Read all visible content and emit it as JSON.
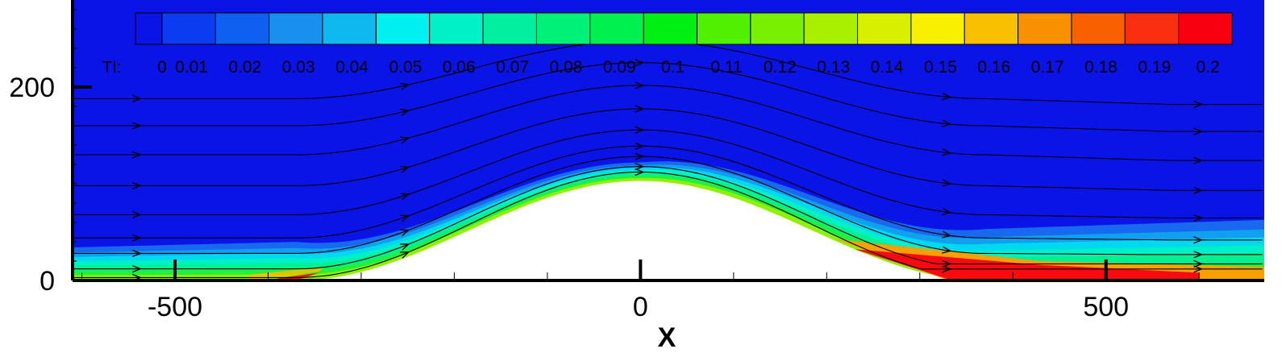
{
  "chart_data": {
    "type": "heatmap",
    "variable": "TI",
    "legend_title": "TI:",
    "colorbar_levels": [
      "0",
      "0.01",
      "0.02",
      "0.03",
      "0.04",
      "0.05",
      "0.06",
      "0.07",
      "0.08",
      "0.09",
      "0.1",
      "0.11",
      "0.12",
      "0.13",
      "0.14",
      "0.15",
      "0.16",
      "0.17",
      "0.18",
      "0.19",
      "0.2"
    ],
    "colorbar_colors": [
      "#0a14e6",
      "#0c3cf0",
      "#1060f0",
      "#1890f0",
      "#10b8f0",
      "#00f0f0",
      "#00f0c8",
      "#00f0a0",
      "#00f078",
      "#00f050",
      "#00f014",
      "#50f000",
      "#78f000",
      "#a8f000",
      "#d8f000",
      "#f8f000",
      "#f8c000",
      "#f89000",
      "#f86000",
      "#f83010",
      "#f80010"
    ],
    "xlabel": "X",
    "ylabel": "",
    "x_ticks": [
      "-500",
      "0",
      "500"
    ],
    "y_ticks": [
      "0",
      "200"
    ],
    "xlim": [
      -610,
      670
    ],
    "ylim": [
      0,
      290
    ],
    "hill_crest_height": 103,
    "hill_half_width": 370,
    "hill_profile": [
      [
        -370,
        0
      ],
      [
        -300,
        28
      ],
      [
        -200,
        62
      ],
      [
        -100,
        90
      ],
      [
        0,
        103
      ],
      [
        100,
        90
      ],
      [
        200,
        62
      ],
      [
        300,
        28
      ],
      [
        370,
        0
      ]
    ],
    "streamline_inlet_heights": [
      3,
      12,
      28,
      44,
      68,
      98,
      130,
      160,
      188
    ],
    "regions": [
      {
        "value": "0.2",
        "x_range": [
          -400,
          -370
        ],
        "note": "windward foot"
      },
      {
        "value": "0.2",
        "x_range": [
          230,
          600
        ],
        "note": "lee-side wake"
      }
    ]
  }
}
